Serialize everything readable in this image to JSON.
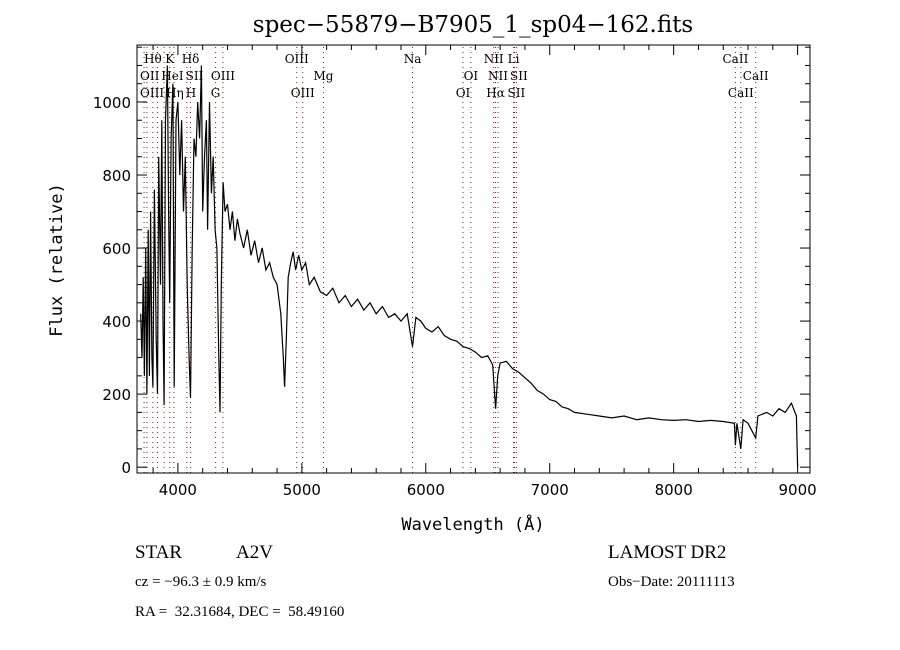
{
  "chart_data": {
    "type": "line",
    "title": "spec−55879−B7905_1_sp04−162.fits",
    "xlabel": "Wavelength (Å)",
    "ylabel": "Flux (relative)",
    "xlim": [
      3670,
      9100
    ],
    "ylim": [
      -16,
      1156
    ],
    "xticks": [
      4000,
      5000,
      6000,
      7000,
      8000,
      9000
    ],
    "yticks": [
      0,
      200,
      400,
      600,
      800,
      1000
    ],
    "grid": false,
    "line_color": "#000000",
    "marker_color": "#8b1a1a",
    "series": [
      {
        "name": "spectrum",
        "points": [
          [
            3700,
            420
          ],
          [
            3710,
            300
          ],
          [
            3720,
            520
          ],
          [
            3730,
            250
          ],
          [
            3740,
            600
          ],
          [
            3750,
            200
          ],
          [
            3760,
            650
          ],
          [
            3770,
            250
          ],
          [
            3780,
            700
          ],
          [
            3790,
            300
          ],
          [
            3798,
            220
          ],
          [
            3810,
            760
          ],
          [
            3825,
            350
          ],
          [
            3835,
            200
          ],
          [
            3845,
            850
          ],
          [
            3860,
            500
          ],
          [
            3870,
            950
          ],
          [
            3880,
            400
          ],
          [
            3889,
            170
          ],
          [
            3900,
            950
          ],
          [
            3915,
            1100
          ],
          [
            3925,
            700
          ],
          [
            3934,
            450
          ],
          [
            3945,
            900
          ],
          [
            3960,
            1050
          ],
          [
            3970,
            220
          ],
          [
            3985,
            950
          ],
          [
            4000,
            1000
          ],
          [
            4015,
            800
          ],
          [
            4030,
            950
          ],
          [
            4045,
            700
          ],
          [
            4060,
            850
          ],
          [
            4075,
            500
          ],
          [
            4090,
            300
          ],
          [
            4102,
            190
          ],
          [
            4115,
            600
          ],
          [
            4130,
            900
          ],
          [
            4145,
            850
          ],
          [
            4160,
            1000
          ],
          [
            4175,
            900
          ],
          [
            4190,
            1100
          ],
          [
            4200,
            700
          ],
          [
            4215,
            850
          ],
          [
            4230,
            950
          ],
          [
            4240,
            650
          ],
          [
            4255,
            1000
          ],
          [
            4270,
            750
          ],
          [
            4285,
            850
          ],
          [
            4300,
            650
          ],
          [
            4315,
            600
          ],
          [
            4330,
            300
          ],
          [
            4340,
            150
          ],
          [
            4350,
            500
          ],
          [
            4365,
            780
          ],
          [
            4380,
            700
          ],
          [
            4400,
            720
          ],
          [
            4420,
            650
          ],
          [
            4440,
            700
          ],
          [
            4460,
            620
          ],
          [
            4480,
            680
          ],
          [
            4500,
            640
          ],
          [
            4530,
            600
          ],
          [
            4560,
            650
          ],
          [
            4590,
            580
          ],
          [
            4620,
            620
          ],
          [
            4650,
            560
          ],
          [
            4680,
            600
          ],
          [
            4710,
            540
          ],
          [
            4740,
            560
          ],
          [
            4770,
            520
          ],
          [
            4800,
            500
          ],
          [
            4830,
            420
          ],
          [
            4850,
            300
          ],
          [
            4861,
            220
          ],
          [
            4875,
            350
          ],
          [
            4890,
            520
          ],
          [
            4910,
            560
          ],
          [
            4930,
            590
          ],
          [
            4950,
            540
          ],
          [
            4975,
            580
          ],
          [
            5000,
            540
          ],
          [
            5030,
            560
          ],
          [
            5060,
            500
          ],
          [
            5100,
            520
          ],
          [
            5150,
            480
          ],
          [
            5200,
            470
          ],
          [
            5250,
            490
          ],
          [
            5300,
            450
          ],
          [
            5350,
            470
          ],
          [
            5400,
            440
          ],
          [
            5450,
            460
          ],
          [
            5500,
            430
          ],
          [
            5550,
            450
          ],
          [
            5600,
            420
          ],
          [
            5650,
            440
          ],
          [
            5700,
            410
          ],
          [
            5750,
            420
          ],
          [
            5800,
            400
          ],
          [
            5850,
            420
          ],
          [
            5893,
            330
          ],
          [
            5920,
            410
          ],
          [
            5960,
            400
          ],
          [
            6000,
            380
          ],
          [
            6050,
            370
          ],
          [
            6100,
            385
          ],
          [
            6150,
            360
          ],
          [
            6200,
            350
          ],
          [
            6250,
            345
          ],
          [
            6300,
            330
          ],
          [
            6350,
            325
          ],
          [
            6400,
            315
          ],
          [
            6450,
            300
          ],
          [
            6500,
            305
          ],
          [
            6540,
            280
          ],
          [
            6563,
            160
          ],
          [
            6580,
            250
          ],
          [
            6600,
            285
          ],
          [
            6650,
            290
          ],
          [
            6700,
            270
          ],
          [
            6750,
            260
          ],
          [
            6800,
            245
          ],
          [
            6850,
            230
          ],
          [
            6900,
            210
          ],
          [
            6950,
            200
          ],
          [
            7000,
            185
          ],
          [
            7050,
            180
          ],
          [
            7100,
            165
          ],
          [
            7150,
            160
          ],
          [
            7200,
            150
          ],
          [
            7300,
            145
          ],
          [
            7400,
            140
          ],
          [
            7500,
            135
          ],
          [
            7600,
            140
          ],
          [
            7700,
            130
          ],
          [
            7800,
            135
          ],
          [
            7900,
            130
          ],
          [
            8000,
            128
          ],
          [
            8100,
            130
          ],
          [
            8200,
            125
          ],
          [
            8300,
            128
          ],
          [
            8400,
            125
          ],
          [
            8490,
            120
          ],
          [
            8498,
            60
          ],
          [
            8510,
            120
          ],
          [
            8542,
            50
          ],
          [
            8560,
            130
          ],
          [
            8600,
            120
          ],
          [
            8662,
            80
          ],
          [
            8680,
            140
          ],
          [
            8750,
            150
          ],
          [
            8800,
            140
          ],
          [
            8850,
            160
          ],
          [
            8900,
            150
          ],
          [
            8950,
            175
          ],
          [
            8990,
            140
          ],
          [
            9000,
            0
          ]
        ]
      }
    ],
    "line_markers": [
      {
        "label": "Hθ",
        "wavelength": 3798,
        "row": 1
      },
      {
        "label": "K",
        "wavelength": 3934,
        "row": 1
      },
      {
        "label": "Hδ",
        "wavelength": 4102,
        "row": 1
      },
      {
        "label": "OIII",
        "wavelength": 4959,
        "row": 1
      },
      {
        "label": "Na",
        "wavelength": 5893,
        "row": 1
      },
      {
        "label": "NII",
        "wavelength": 6548,
        "row": 1
      },
      {
        "label": "Li",
        "wavelength": 6708,
        "row": 1
      },
      {
        "label": "CaII",
        "wavelength": 8498,
        "row": 1
      },
      {
        "label": "OII",
        "wavelength": 3727,
        "row": 2
      },
      {
        "label": "HeI",
        "wavelength": 3889,
        "row": 2
      },
      {
        "label": "SII",
        "wavelength": 4072,
        "row": 2
      },
      {
        "label": "OIII",
        "wavelength": 4363,
        "row": 2
      },
      {
        "label": "Mg",
        "wavelength": 5175,
        "row": 2
      },
      {
        "label": "OI",
        "wavelength": 6364,
        "row": 2
      },
      {
        "label": "NII",
        "wavelength": 6583,
        "row": 2
      },
      {
        "label": "SII",
        "wavelength": 6716,
        "row": 2
      },
      {
        "label": "CaII",
        "wavelength": 8662,
        "row": 2
      },
      {
        "label": "OIII",
        "wavelength": 3750,
        "row": 3
      },
      {
        "label": "Hη",
        "wavelength": 3835,
        "row": 3
      },
      {
        "label": "H",
        "wavelength": 3968,
        "row": 3
      },
      {
        "label": "G",
        "wavelength": 4304,
        "row": 3
      },
      {
        "label": "OIII",
        "wavelength": 5007,
        "row": 3
      },
      {
        "label": "OI",
        "wavelength": 6300,
        "row": 3
      },
      {
        "label": "Hα",
        "wavelength": 6563,
        "row": 3
      },
      {
        "label": "SII",
        "wavelength": 6731,
        "row": 3
      },
      {
        "label": "CaII",
        "wavelength": 8542,
        "row": 3
      }
    ]
  },
  "info": {
    "object_class": "STAR",
    "subclass": "A2V",
    "redshift": "cz = −96.3 ± 0.9 km/s",
    "coords": "RA =  32.31684, DEC =  58.49160",
    "survey": "LAMOST DR2",
    "obs_date": "Obs−Date: 20111113"
  }
}
